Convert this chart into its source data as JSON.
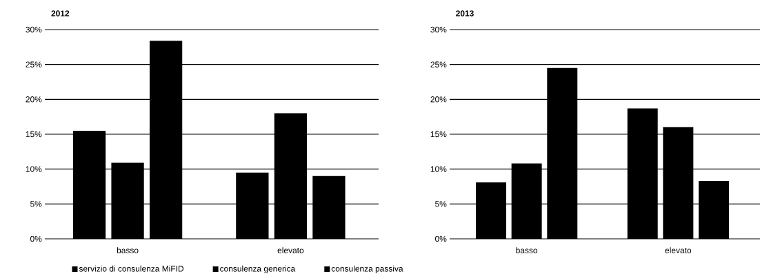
{
  "chart_data": [
    {
      "type": "bar",
      "title": "2012",
      "categories": [
        "basso",
        "elevato"
      ],
      "series": [
        {
          "name": "servizio di consulenza MiFID",
          "color": "#000000",
          "values": [
            15.5,
            9.5
          ]
        },
        {
          "name": "consulenza generica",
          "color": "#000000",
          "values": [
            10.9,
            18.0
          ]
        },
        {
          "name": "consulenza passiva",
          "color": "#000000",
          "values": [
            28.4,
            9.0
          ]
        }
      ],
      "ylim": [
        0,
        30
      ],
      "yticks": [
        {
          "value": 0,
          "label": "0%"
        },
        {
          "value": 5,
          "label": "5%"
        },
        {
          "value": 10,
          "label": "10%"
        },
        {
          "value": 15,
          "label": "15%"
        },
        {
          "value": 20,
          "label": "20%"
        },
        {
          "value": 25,
          "label": "25%"
        },
        {
          "value": 30,
          "label": "30%"
        }
      ],
      "grid": "y",
      "legend": "bottom"
    },
    {
      "type": "bar",
      "title": "2013",
      "categories": [
        "basso",
        "elevato"
      ],
      "series": [
        {
          "color": "#000000",
          "values": [
            8.1,
            18.7
          ]
        },
        {
          "color": "#000000",
          "values": [
            10.8,
            16.0
          ]
        },
        {
          "color": "#000000",
          "values": [
            24.5,
            8.3
          ]
        }
      ],
      "ylim": [
        0,
        30
      ],
      "yticks": [
        {
          "value": 0,
          "label": "0%"
        },
        {
          "value": 5,
          "label": "5%"
        },
        {
          "value": 10,
          "label": "10%"
        },
        {
          "value": 15,
          "label": "15%"
        },
        {
          "value": 20,
          "label": "20%"
        },
        {
          "value": 25,
          "label": "25%"
        },
        {
          "value": 30,
          "label": "30%"
        }
      ],
      "grid": "y"
    }
  ]
}
